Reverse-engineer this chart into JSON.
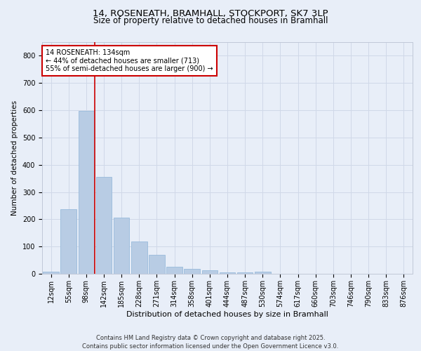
{
  "title_line1": "14, ROSENEATH, BRAMHALL, STOCKPORT, SK7 3LP",
  "title_line2": "Size of property relative to detached houses in Bramhall",
  "xlabel": "Distribution of detached houses by size in Bramhall",
  "ylabel": "Number of detached properties",
  "categories": [
    "12sqm",
    "55sqm",
    "98sqm",
    "142sqm",
    "185sqm",
    "228sqm",
    "271sqm",
    "314sqm",
    "358sqm",
    "401sqm",
    "444sqm",
    "487sqm",
    "530sqm",
    "574sqm",
    "617sqm",
    "660sqm",
    "703sqm",
    "746sqm",
    "790sqm",
    "833sqm",
    "876sqm"
  ],
  "values": [
    8,
    238,
    597,
    355,
    205,
    118,
    70,
    27,
    17,
    13,
    5,
    5,
    8,
    0,
    0,
    0,
    0,
    0,
    0,
    0,
    0
  ],
  "bar_color": "#b8cce4",
  "bar_edge_color": "#8eb4d8",
  "grid_color": "#d0d8e8",
  "bg_color": "#e8eef8",
  "vline_x_index": 2.5,
  "annotation_text": "14 ROSENEATH: 134sqm\n← 44% of detached houses are smaller (713)\n55% of semi-detached houses are larger (900) →",
  "annotation_box_color": "#ffffff",
  "annotation_border_color": "#cc0000",
  "vline_color": "#cc0000",
  "footer_line1": "Contains HM Land Registry data © Crown copyright and database right 2025.",
  "footer_line2": "Contains public sector information licensed under the Open Government Licence v3.0.",
  "ylim": [
    0,
    850
  ],
  "yticks": [
    0,
    100,
    200,
    300,
    400,
    500,
    600,
    700,
    800
  ],
  "title1_fontsize": 9.5,
  "title2_fontsize": 8.5,
  "xlabel_fontsize": 8,
  "ylabel_fontsize": 7.5,
  "tick_fontsize": 7,
  "footer_fontsize": 6,
  "ann_fontsize": 7
}
